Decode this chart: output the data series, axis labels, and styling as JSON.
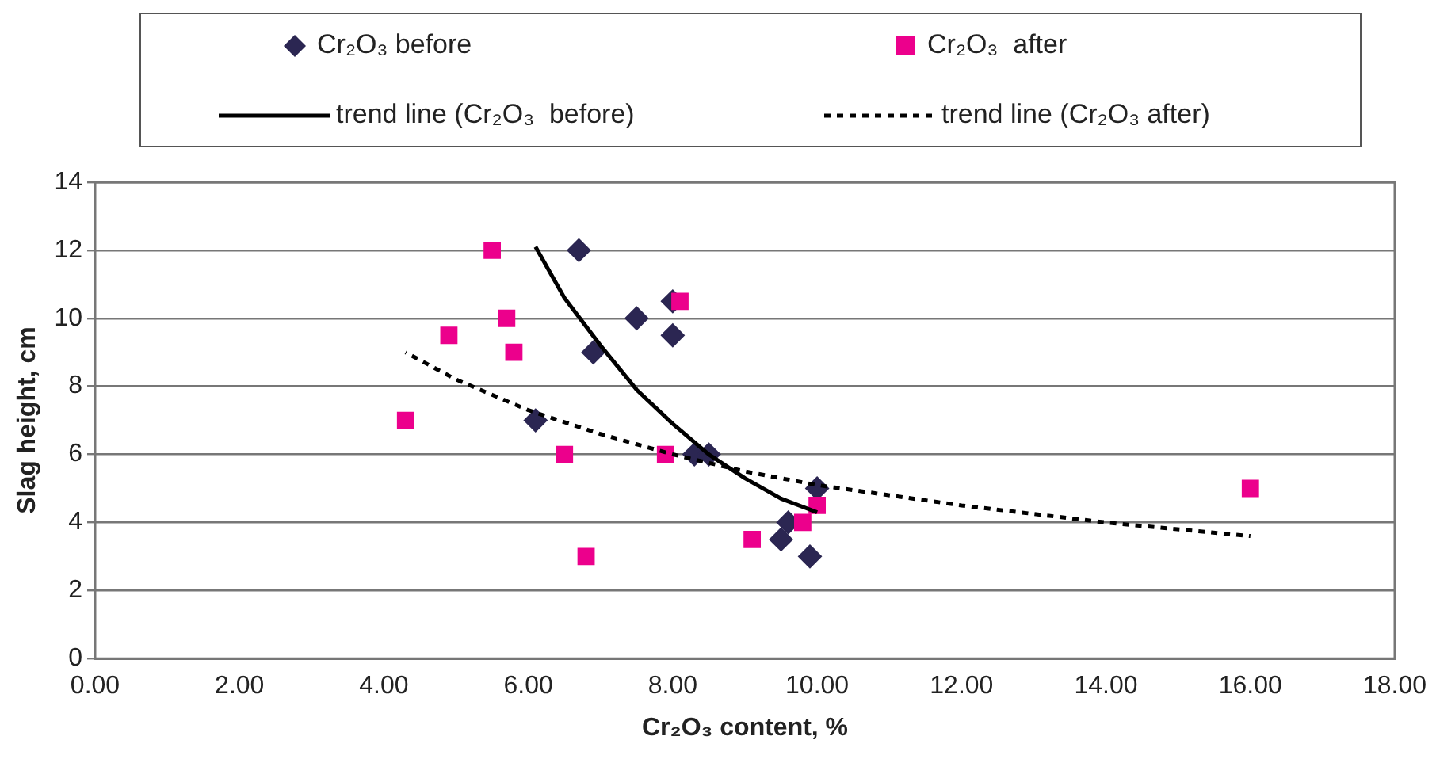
{
  "chart_data": {
    "type": "scatter",
    "xlabel": "Cr₂O₃ content, %",
    "ylabel": "Slag height, cm",
    "xlim": [
      0,
      18
    ],
    "xticks": [
      {
        "value": 0,
        "label": "0.00"
      },
      {
        "value": 2,
        "label": "2.00"
      },
      {
        "value": 4,
        "label": "4.00"
      },
      {
        "value": 6,
        "label": "6.00"
      },
      {
        "value": 8,
        "label": "8.00"
      },
      {
        "value": 10,
        "label": "10.00"
      },
      {
        "value": 12,
        "label": "12.00"
      },
      {
        "value": 14,
        "label": "14.00"
      },
      {
        "value": 16,
        "label": "16.00"
      },
      {
        "value": 18,
        "label": "18.00"
      }
    ],
    "ylim": [
      0,
      14
    ],
    "yticks": [
      0,
      2,
      4,
      6,
      8,
      10,
      12,
      14
    ],
    "grid": "y",
    "legend": "top",
    "series": [
      {
        "name": "Cr₂O₃ before",
        "marker": "diamond",
        "color": "#2b2652",
        "x": [
          6.7,
          7.5,
          8.0,
          8.0,
          6.9,
          6.1,
          8.3,
          8.5,
          10.0,
          9.6,
          9.5,
          9.9
        ],
        "values": [
          12,
          10,
          10.5,
          9.5,
          9,
          7,
          6,
          6,
          5,
          4,
          3.5,
          3
        ]
      },
      {
        "name": "Cr₂O₃  after",
        "marker": "square",
        "color": "#ec008c",
        "x": [
          5.5,
          8.1,
          4.9,
          5.7,
          5.8,
          4.3,
          6.5,
          7.9,
          6.8,
          9.1,
          9.8,
          10.0,
          16.0
        ],
        "values": [
          12,
          10.5,
          9.5,
          10,
          9,
          7,
          6,
          6,
          3,
          3.5,
          4,
          4.5,
          5
        ]
      },
      {
        "name": "trend line (Cr₂O₃  before)",
        "type": "line",
        "line_style": "solid",
        "color": "#000000",
        "x": [
          6.1,
          6.5,
          7,
          7.5,
          8,
          8.5,
          9,
          9.5,
          10
        ],
        "values": [
          12.1,
          10.6,
          9.2,
          7.9,
          6.9,
          6.0,
          5.3,
          4.7,
          4.3
        ]
      },
      {
        "name": "trend line (Cr₂O₃ after)",
        "type": "line",
        "line_style": "dotted",
        "color": "#000000",
        "x": [
          4.3,
          5,
          6,
          7,
          8,
          9,
          10,
          12,
          14,
          16
        ],
        "values": [
          9.0,
          8.2,
          7.3,
          6.6,
          6.0,
          5.5,
          5.1,
          4.5,
          4.0,
          3.6
        ]
      }
    ]
  }
}
